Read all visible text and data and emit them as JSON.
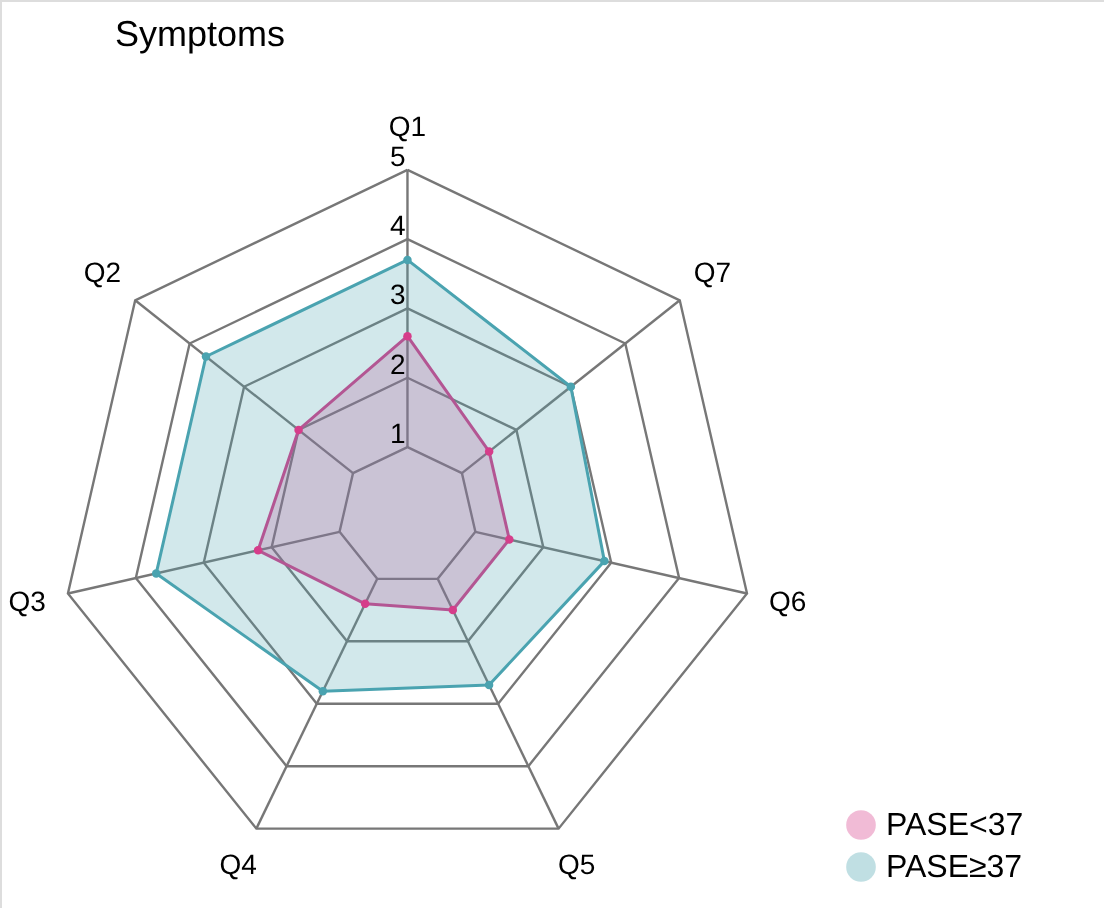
{
  "chart_data": {
    "type": "radar",
    "title": "Symptoms",
    "categories": [
      "Q1",
      "Q7",
      "Q6",
      "Q5",
      "Q4",
      "Q3",
      "Q2"
    ],
    "series": [
      {
        "name": "PASE<37",
        "color": "#d63d8a",
        "values": [
          2.6,
          1.5,
          1.5,
          1.5,
          1.4,
          2.2,
          2.0
        ]
      },
      {
        "name": "PASE≥37",
        "color": "#4aa3b0",
        "values": [
          3.7,
          3.0,
          2.9,
          2.7,
          2.8,
          3.7,
          3.7
        ]
      }
    ],
    "ylim": [
      0,
      5
    ],
    "yticks": [
      1,
      2,
      3,
      4,
      5
    ],
    "marker": "circle",
    "legend": "bottom right",
    "grid": true
  }
}
